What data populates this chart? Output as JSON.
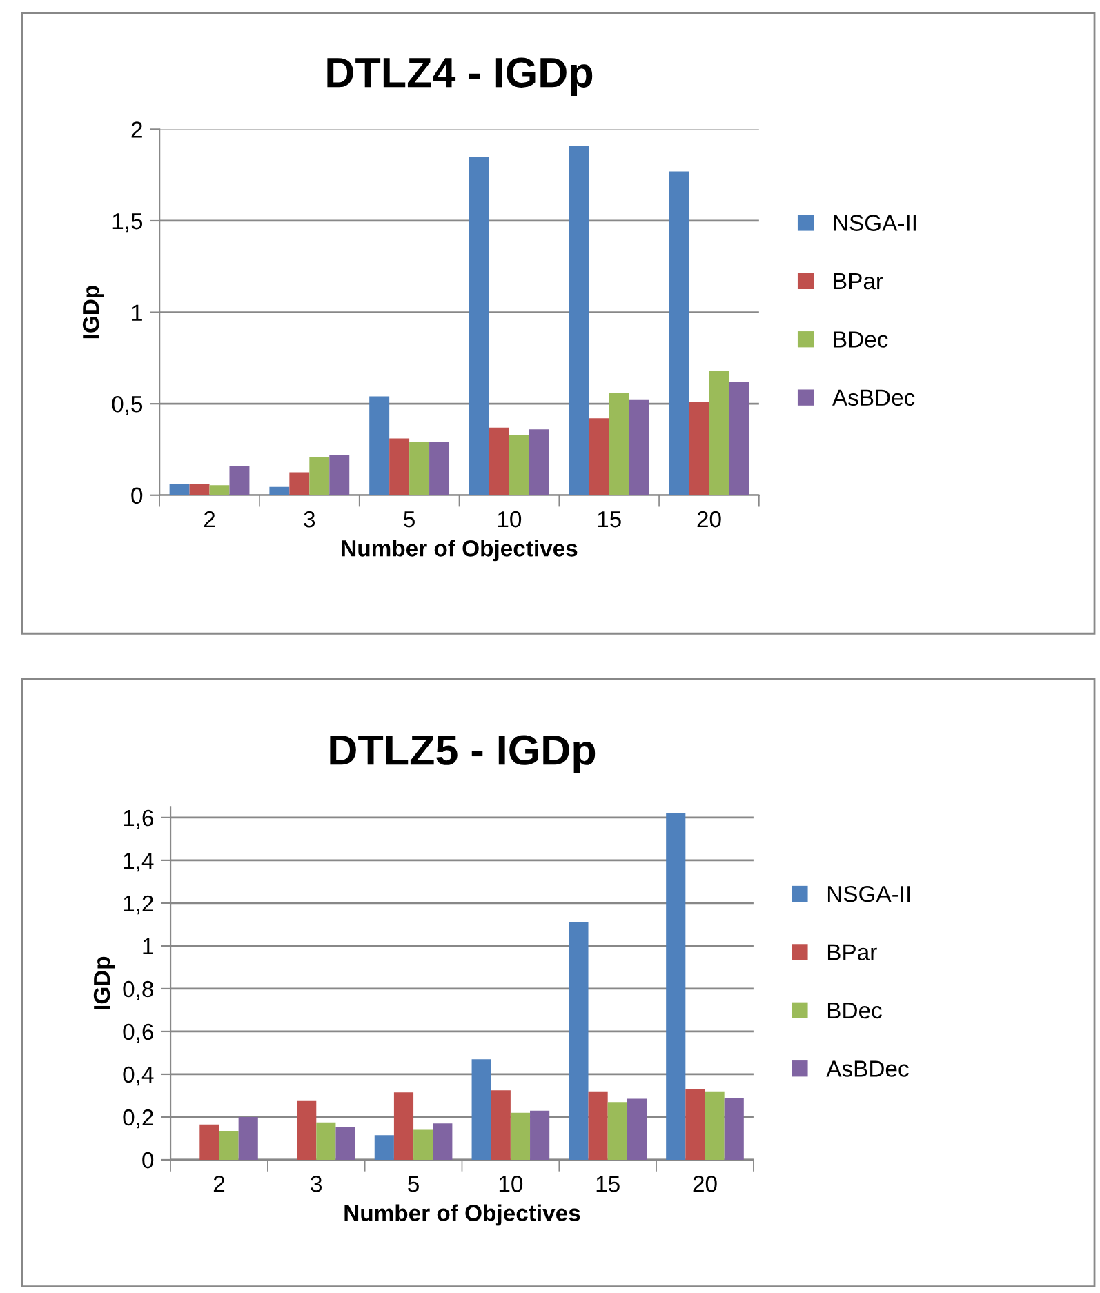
{
  "chart_data": [
    {
      "type": "bar",
      "title": "DTLZ4 - IGDp",
      "xlabel": "Number of Objectives",
      "ylabel": "IGDp",
      "categories": [
        "2",
        "3",
        "5",
        "10",
        "15",
        "20"
      ],
      "series": [
        {
          "name": "NSGA-II",
          "color": "#4f81bd",
          "values": [
            0.06,
            0.045,
            0.54,
            1.85,
            1.91,
            1.77
          ]
        },
        {
          "name": "BPar",
          "color": "#c0504d",
          "values": [
            0.06,
            0.125,
            0.31,
            0.37,
            0.42,
            0.51
          ]
        },
        {
          "name": "BDec",
          "color": "#9bbb59",
          "values": [
            0.055,
            0.21,
            0.29,
            0.33,
            0.56,
            0.68
          ]
        },
        {
          "name": "AsBDec",
          "color": "#8064a2",
          "values": [
            0.16,
            0.22,
            0.29,
            0.36,
            0.52,
            0.62
          ]
        }
      ],
      "ylim": [
        0,
        2
      ],
      "yticks": [
        0,
        {
          "value": 0.5,
          "label": "0,5"
        },
        1,
        {
          "value": 1.5,
          "label": "1,5"
        },
        2
      ],
      "grid": "y",
      "legend": "right"
    },
    {
      "type": "bar",
      "title": "DTLZ5 - IGDp",
      "xlabel": "Number of Objectives",
      "ylabel": "IGDp",
      "categories": [
        "2",
        "3",
        "5",
        "10",
        "15",
        "20"
      ],
      "series": [
        {
          "name": "NSGA-II",
          "color": "#4f81bd",
          "values": [
            0,
            0,
            0.115,
            0.47,
            1.11,
            1.62
          ]
        },
        {
          "name": "BPar",
          "color": "#c0504d",
          "values": [
            0.165,
            0.275,
            0.315,
            0.325,
            0.32,
            0.33
          ]
        },
        {
          "name": "BDec",
          "color": "#9bbb59",
          "values": [
            0.135,
            0.175,
            0.14,
            0.22,
            0.27,
            0.32
          ]
        },
        {
          "name": "AsBDec",
          "color": "#8064a2",
          "values": [
            0.2,
            0.155,
            0.17,
            0.23,
            0.285,
            0.29
          ]
        }
      ],
      "ylim": [
        0,
        1.65
      ],
      "yticks": [
        0,
        {
          "value": 0.2,
          "label": "0,2"
        },
        {
          "value": 0.4,
          "label": "0,4"
        },
        {
          "value": 0.6,
          "label": "0,6"
        },
        {
          "value": 0.8,
          "label": "0,8"
        },
        1,
        {
          "value": 1.2,
          "label": "1,2"
        },
        {
          "value": 1.4,
          "label": "1,4"
        },
        {
          "value": 1.6,
          "label": "1,6"
        }
      ],
      "grid": "y",
      "legend": "right"
    }
  ]
}
